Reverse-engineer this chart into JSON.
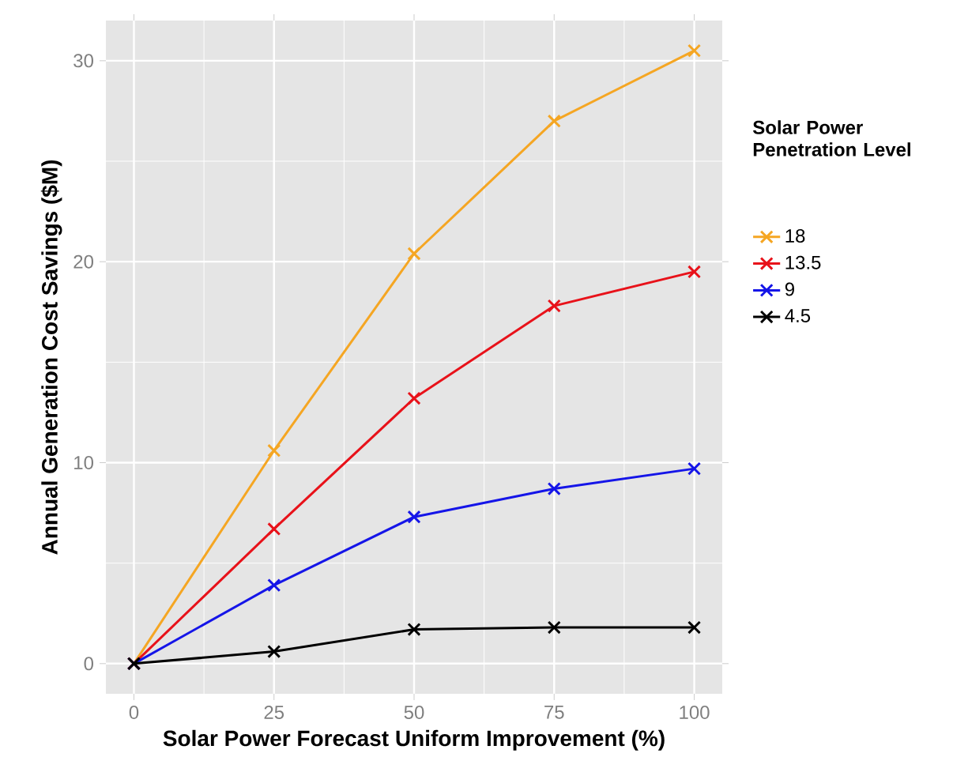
{
  "chart_data": {
    "type": "line",
    "xlabel": "Solar Power Forecast Uniform Improvement (%)",
    "ylabel": "Annual Generation Cost Savings ($M)",
    "legend_title": "Solar Power Penetration Level",
    "x": [
      0,
      25,
      50,
      75,
      100
    ],
    "series": [
      {
        "name": "18",
        "color": "#f5a623",
        "values": [
          0,
          10.6,
          20.4,
          27.0,
          30.5
        ]
      },
      {
        "name": "13.5",
        "color": "#e8121a",
        "values": [
          0,
          6.7,
          13.2,
          17.8,
          19.5
        ]
      },
      {
        "name": "9",
        "color": "#1515e8",
        "values": [
          0,
          3.9,
          7.3,
          8.7,
          9.7
        ]
      },
      {
        "name": "4.5",
        "color": "#000000",
        "values": [
          0,
          0.6,
          1.7,
          1.8,
          1.8
        ]
      }
    ],
    "xlim": [
      -5,
      105
    ],
    "ylim": [
      -1.5,
      32
    ],
    "xticks": [
      0,
      25,
      50,
      75,
      100
    ],
    "yticks": [
      0,
      10,
      20,
      30
    ],
    "grid": true,
    "legend": "right",
    "marker": "cross",
    "line_style": "solid"
  }
}
